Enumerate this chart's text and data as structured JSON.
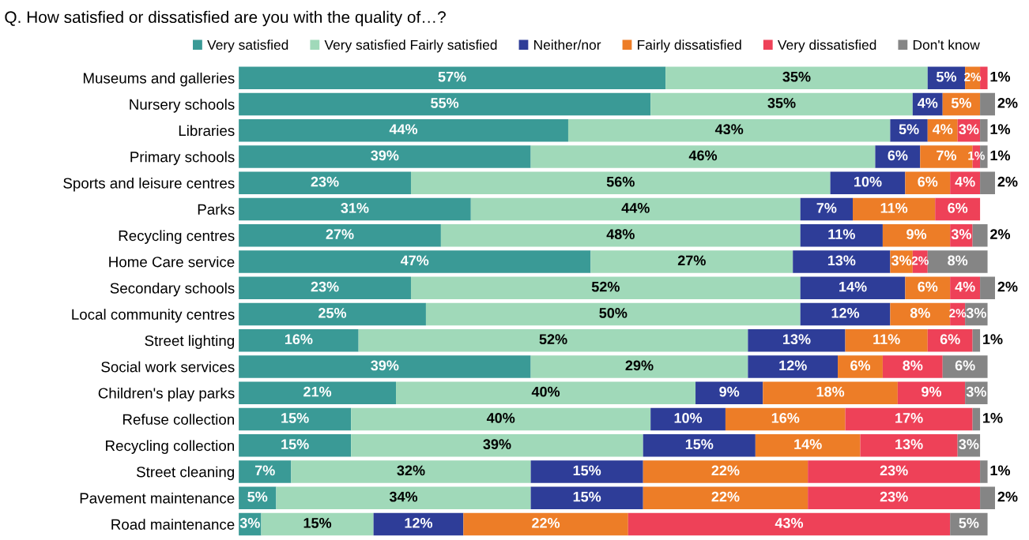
{
  "chart_data": {
    "type": "bar",
    "orientation": "horizontal",
    "stacked": true,
    "legend": "top",
    "grid": false,
    "title": "Q. How satisfied or dissatisfied are you with the quality of…?",
    "categories": [
      "Museums and galleries",
      "Nursery schools",
      "Libraries",
      "Primary schools",
      "Sports and leisure centres",
      "Parks",
      "Recycling centres",
      "Home Care service",
      "Secondary schools",
      "Local community centres",
      "Street lighting",
      "Social work services",
      "Children's play parks",
      "Refuse collection",
      "Recycling collection",
      "Street cleaning",
      "Pavement maintenance",
      "Road maintenance"
    ],
    "series": [
      {
        "name": "Very satisfied",
        "color": "#3a9a96",
        "values": [
          57,
          55,
          44,
          39,
          23,
          31,
          27,
          47,
          23,
          25,
          16,
          39,
          21,
          15,
          15,
          7,
          5,
          3
        ],
        "value_labels": [
          "57%",
          "55%",
          "44%",
          "39%",
          "23%",
          "31%",
          "27%",
          "47%",
          "23%",
          "25%",
          "16%",
          "39%",
          "21%",
          "15%",
          "15%",
          "7%",
          "5%",
          "3%"
        ]
      },
      {
        "name": "Very satisfied Fairly satisfied",
        "color": "#a0d9b9",
        "values": [
          35,
          35,
          43,
          46,
          56,
          44,
          48,
          27,
          52,
          50,
          52,
          29,
          40,
          40,
          39,
          32,
          34,
          15
        ],
        "value_labels": [
          "35%",
          "35%",
          "43%",
          "46%",
          "56%",
          "44%",
          "48%",
          "27%",
          "52%",
          "50%",
          "52%",
          "29%",
          "40%",
          "40%",
          "39%",
          "32%",
          "34%",
          "15%"
        ]
      },
      {
        "name": "Neither/nor",
        "color": "#2e3d98",
        "values": [
          5,
          4,
          5,
          6,
          10,
          7,
          11,
          13,
          14,
          12,
          13,
          12,
          9,
          10,
          15,
          15,
          15,
          12
        ],
        "value_labels": [
          "5%",
          "4%",
          "5%",
          "6%",
          "10%",
          "7%",
          "11%",
          "13%",
          "14%",
          "12%",
          "13%",
          "12%",
          "9%",
          "10%",
          "15%",
          "15%",
          "15%",
          "12%"
        ]
      },
      {
        "name": "Fairly dissatisfied",
        "color": "#ed7d27",
        "values": [
          2,
          5,
          4,
          7,
          6,
          11,
          9,
          3,
          6,
          8,
          11,
          6,
          18,
          16,
          14,
          22,
          22,
          22
        ],
        "value_labels": [
          "2%",
          "5%",
          "4%",
          "7%",
          "6%",
          "11%",
          "9%",
          "3%",
          "6%",
          "8%",
          "11%",
          "6%",
          "18%",
          "16%",
          "14%",
          "22%",
          "22%",
          "22%"
        ]
      },
      {
        "name": "Very dissatisfied",
        "color": "#ee4158",
        "values": [
          1,
          null,
          3,
          1,
          4,
          6,
          3,
          2,
          4,
          2,
          6,
          8,
          9,
          17,
          13,
          23,
          23,
          43
        ],
        "value_labels": [
          "1%",
          null,
          "3%",
          "1%",
          "4%",
          "6%",
          "3%",
          "2%",
          "4%",
          "2%",
          "6%",
          "8%",
          "9%",
          "17%",
          "13%",
          "23%",
          "23%",
          "43%"
        ]
      },
      {
        "name": "Don't know",
        "color": "#858585",
        "values": [
          null,
          2,
          1,
          1,
          2,
          null,
          2,
          8,
          2,
          3,
          1,
          6,
          3,
          1,
          3,
          1,
          2,
          5
        ],
        "value_labels": [
          null,
          "2%",
          "1%",
          "1%",
          "2%",
          null,
          "2%",
          "8%",
          "2%",
          "3%",
          "1%",
          "6%",
          "3%",
          "1%",
          "3%",
          "1%",
          "2%",
          "5%"
        ]
      }
    ]
  }
}
